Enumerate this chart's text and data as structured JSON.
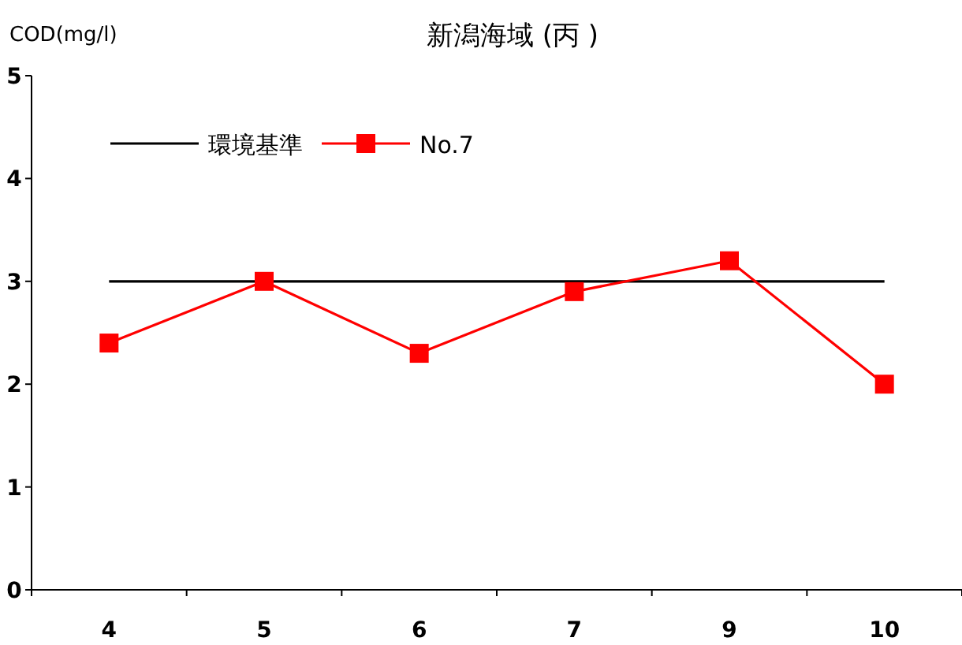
{
  "chart_data": {
    "type": "line",
    "title": "新潟海域 (丙 )",
    "ylabel": "COD(mg/l)",
    "categories": [
      "4",
      "5",
      "6",
      "7",
      "9",
      "10"
    ],
    "ylim": [
      0,
      5
    ],
    "yticks": [
      0,
      1,
      2,
      3,
      4,
      5
    ],
    "grid": false,
    "legend": "top left",
    "series": [
      {
        "name": "環境基準",
        "color": "#000000",
        "marker": "none",
        "values": [
          3,
          3,
          3,
          3,
          3,
          3
        ]
      },
      {
        "name": "No.7",
        "color": "#ff0000",
        "marker": "square",
        "values": [
          2.4,
          3.0,
          2.3,
          2.9,
          3.2,
          2.0
        ]
      }
    ]
  }
}
